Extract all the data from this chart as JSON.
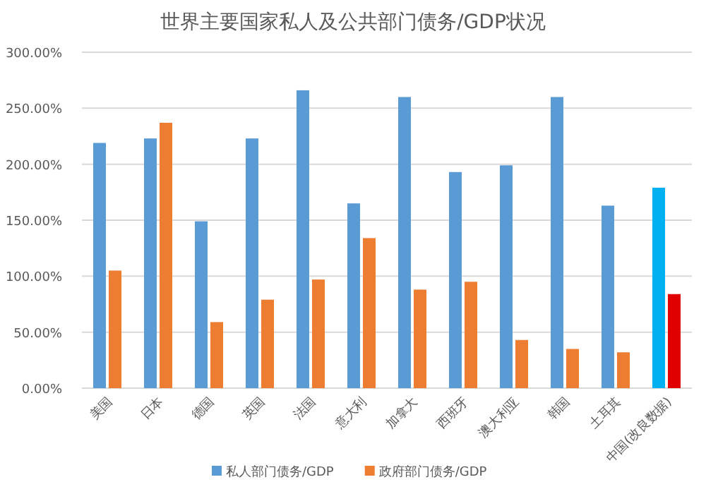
{
  "chart_data": {
    "type": "bar",
    "title": "世界主要国家私人及公共部门债务/GDP状况",
    "categories": [
      "美国",
      "日本",
      "德国",
      "英国",
      "法国",
      "意大利",
      "加拿大",
      "西班牙",
      "澳大利亚",
      "韩国",
      "土耳其",
      "中国(改良数据)"
    ],
    "series": [
      {
        "name": "私人部门债务/GDP",
        "color": "#5b9bd5",
        "colors": [
          "#5b9bd5",
          "#5b9bd5",
          "#5b9bd5",
          "#5b9bd5",
          "#5b9bd5",
          "#5b9bd5",
          "#5b9bd5",
          "#5b9bd5",
          "#5b9bd5",
          "#5b9bd5",
          "#5b9bd5",
          "#00b0f0"
        ],
        "values": [
          219,
          223,
          149,
          223,
          266,
          165,
          260,
          193,
          199,
          260,
          163,
          179
        ]
      },
      {
        "name": "政府部门债务/GDP",
        "color": "#ed7d31",
        "colors": [
          "#ed7d31",
          "#ed7d31",
          "#ed7d31",
          "#ed7d31",
          "#ed7d31",
          "#ed7d31",
          "#ed7d31",
          "#ed7d31",
          "#ed7d31",
          "#ed7d31",
          "#ed7d31",
          "#e00000"
        ],
        "values": [
          105,
          237,
          59,
          79,
          97,
          134,
          88,
          95,
          43,
          35,
          32,
          84
        ]
      }
    ],
    "ylim": [
      0,
      300
    ],
    "yticks": [
      {
        "value": 0,
        "label": "0.00%"
      },
      {
        "value": 50,
        "label": "50.00%"
      },
      {
        "value": 100,
        "label": "100.00%"
      },
      {
        "value": 150,
        "label": "150.00%"
      },
      {
        "value": 200,
        "label": "200.00%"
      },
      {
        "value": 250,
        "label": "250.00%"
      },
      {
        "value": 300,
        "label": "300.00%"
      }
    ],
    "grid": "y",
    "legend": "bottom"
  }
}
